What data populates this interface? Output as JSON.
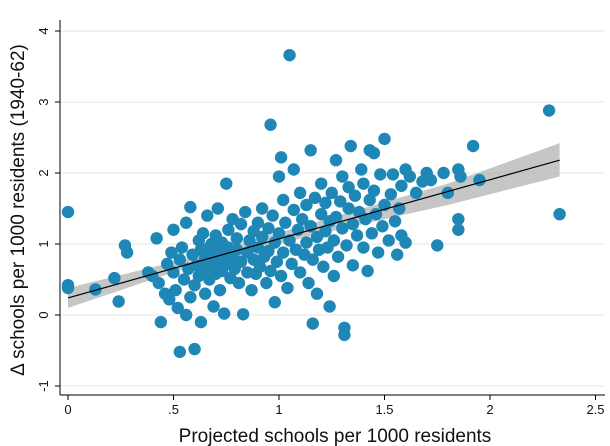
{
  "chart_data": {
    "type": "scatter",
    "title": "",
    "xlabel": "Projected schools per 1000 residents",
    "ylabel": "Δ schools per 1000 residents (1940-62)",
    "xlim": [
      -0.04,
      2.5
    ],
    "ylim": [
      -1.15,
      4.15
    ],
    "xticks": [
      0,
      0.5,
      1,
      1.5,
      2,
      2.5
    ],
    "xtick_labels": [
      "0",
      ".5",
      "1",
      "1.5",
      "2",
      "2.5"
    ],
    "yticks": [
      -1,
      0,
      1,
      2,
      3,
      4
    ],
    "ytick_labels": [
      "-1",
      "0",
      "1",
      "2",
      "3",
      "4"
    ],
    "grid": "horizontal",
    "legend": "none",
    "colors": {
      "points": "#1f87b5",
      "fit_line": "#000000",
      "ci_band": "#b3b3b3"
    },
    "fit_line": {
      "x": [
        0.0,
        2.33
      ],
      "y": [
        0.24,
        2.18
      ]
    },
    "ci_band": {
      "x": [
        0.0,
        0.6,
        1.2,
        1.8,
        2.33
      ],
      "lower": [
        0.1,
        0.7,
        1.15,
        1.55,
        1.95
      ],
      "upper": [
        0.38,
        0.82,
        1.33,
        1.85,
        2.42
      ]
    },
    "points": [
      [
        0.0,
        1.45
      ],
      [
        0.0,
        0.42
      ],
      [
        0.0,
        0.38
      ],
      [
        0.13,
        0.36
      ],
      [
        0.22,
        0.52
      ],
      [
        0.24,
        0.19
      ],
      [
        0.27,
        0.98
      ],
      [
        0.28,
        0.88
      ],
      [
        0.38,
        0.6
      ],
      [
        0.4,
        0.55
      ],
      [
        0.42,
        1.08
      ],
      [
        0.43,
        0.45
      ],
      [
        0.44,
        -0.1
      ],
      [
        0.46,
        0.3
      ],
      [
        0.47,
        0.72
      ],
      [
        0.48,
        0.22
      ],
      [
        0.49,
        0.88
      ],
      [
        0.5,
        0.6
      ],
      [
        0.5,
        1.2
      ],
      [
        0.51,
        0.35
      ],
      [
        0.52,
        0.1
      ],
      [
        0.53,
        0.78
      ],
      [
        0.53,
        -0.52
      ],
      [
        0.54,
        0.95
      ],
      [
        0.55,
        0.5
      ],
      [
        0.56,
        1.3
      ],
      [
        0.56,
        0.0
      ],
      [
        0.57,
        0.65
      ],
      [
        0.58,
        1.52
      ],
      [
        0.58,
        0.25
      ],
      [
        0.59,
        0.85
      ],
      [
        0.6,
        0.42
      ],
      [
        0.6,
        -0.48
      ],
      [
        0.61,
        0.7
      ],
      [
        0.62,
        1.05
      ],
      [
        0.62,
        0.55
      ],
      [
        0.63,
        0.92
      ],
      [
        0.63,
        -0.1
      ],
      [
        0.64,
        0.6
      ],
      [
        0.64,
        1.15
      ],
      [
        0.65,
        0.8
      ],
      [
        0.65,
        0.3
      ],
      [
        0.66,
        0.72
      ],
      [
        0.66,
        1.4
      ],
      [
        0.67,
        0.95
      ],
      [
        0.67,
        0.5
      ],
      [
        0.68,
        0.68
      ],
      [
        0.68,
        1.0
      ],
      [
        0.69,
        0.12
      ],
      [
        0.69,
        0.82
      ],
      [
        0.7,
        1.12
      ],
      [
        0.7,
        0.58
      ],
      [
        0.71,
        0.75
      ],
      [
        0.71,
        1.5
      ],
      [
        0.72,
        0.9
      ],
      [
        0.72,
        0.35
      ],
      [
        0.73,
        1.02
      ],
      [
        0.73,
        0.62
      ],
      [
        0.74,
        0.85
      ],
      [
        0.74,
        0.02
      ],
      [
        0.75,
        1.85
      ],
      [
        0.75,
        0.72
      ],
      [
        0.76,
        1.2
      ],
      [
        0.76,
        0.95
      ],
      [
        0.77,
        0.52
      ],
      [
        0.78,
        1.35
      ],
      [
        0.78,
        0.8
      ],
      [
        0.79,
        0.65
      ],
      [
        0.8,
        1.08
      ],
      [
        0.8,
        0.92
      ],
      [
        0.81,
        0.45
      ],
      [
        0.82,
        1.28
      ],
      [
        0.82,
        0.75
      ],
      [
        0.83,
        0.01
      ],
      [
        0.84,
        1.45
      ],
      [
        0.85,
        0.88
      ],
      [
        0.85,
        0.6
      ],
      [
        0.86,
        1.05
      ],
      [
        0.87,
        0.35
      ],
      [
        0.88,
        1.18
      ],
      [
        0.88,
        0.78
      ],
      [
        0.89,
        0.58
      ],
      [
        0.9,
        1.3
      ],
      [
        0.9,
        0.95
      ],
      [
        0.91,
        0.68
      ],
      [
        0.92,
        1.1
      ],
      [
        0.92,
        1.5
      ],
      [
        0.93,
        0.82
      ],
      [
        0.94,
        0.45
      ],
      [
        0.95,
        1.22
      ],
      [
        0.95,
        0.9
      ],
      [
        0.96,
        0.62
      ],
      [
        0.96,
        2.68
      ],
      [
        0.97,
        1.4
      ],
      [
        0.98,
        1.02
      ],
      [
        0.98,
        0.18
      ],
      [
        0.99,
        0.75
      ],
      [
        1.0,
        1.95
      ],
      [
        1.0,
        1.15
      ],
      [
        1.01,
        2.22
      ],
      [
        1.01,
        0.55
      ],
      [
        1.02,
        0.88
      ],
      [
        1.02,
        1.62
      ],
      [
        1.03,
        1.3
      ],
      [
        1.04,
        0.38
      ],
      [
        1.05,
        3.66
      ],
      [
        1.05,
        1.05
      ],
      [
        1.06,
        0.72
      ],
      [
        1.07,
        2.05
      ],
      [
        1.07,
        1.48
      ],
      [
        1.08,
        0.92
      ],
      [
        1.09,
        1.2
      ],
      [
        1.1,
        0.6
      ],
      [
        1.1,
        1.72
      ],
      [
        1.11,
        1.35
      ],
      [
        1.12,
        0.85
      ],
      [
        1.13,
        1.55
      ],
      [
        1.13,
        1.02
      ],
      [
        1.14,
        0.45
      ],
      [
        1.15,
        1.25
      ],
      [
        1.15,
        2.32
      ],
      [
        1.16,
        0.78
      ],
      [
        1.16,
        -0.12
      ],
      [
        1.17,
        1.65
      ],
      [
        1.18,
        1.1
      ],
      [
        1.18,
        0.3
      ],
      [
        1.19,
        0.92
      ],
      [
        1.2,
        1.42
      ],
      [
        1.2,
        1.85
      ],
      [
        1.21,
        0.68
      ],
      [
        1.22,
        1.18
      ],
      [
        1.22,
        1.58
      ],
      [
        1.23,
        0.95
      ],
      [
        1.24,
        1.32
      ],
      [
        1.24,
        0.12
      ],
      [
        1.25,
        1.72
      ],
      [
        1.26,
        1.05
      ],
      [
        1.26,
        0.55
      ],
      [
        1.27,
        2.18
      ],
      [
        1.27,
        1.38
      ],
      [
        1.28,
        0.82
      ],
      [
        1.29,
        1.6
      ],
      [
        1.3,
        1.22
      ],
      [
        1.3,
        1.95
      ],
      [
        1.31,
        -0.18
      ],
      [
        1.31,
        -0.28
      ],
      [
        1.32,
        0.98
      ],
      [
        1.33,
        1.5
      ],
      [
        1.33,
        1.8
      ],
      [
        1.34,
        2.38
      ],
      [
        1.35,
        1.28
      ],
      [
        1.35,
        0.7
      ],
      [
        1.36,
        1.68
      ],
      [
        1.37,
        1.12
      ],
      [
        1.38,
        1.45
      ],
      [
        1.39,
        2.05
      ],
      [
        1.4,
        0.95
      ],
      [
        1.4,
        1.85
      ],
      [
        1.41,
        1.35
      ],
      [
        1.42,
        0.62
      ],
      [
        1.43,
        1.62
      ],
      [
        1.43,
        2.32
      ],
      [
        1.44,
        1.15
      ],
      [
        1.45,
        1.75
      ],
      [
        1.45,
        2.28
      ],
      [
        1.46,
        1.42
      ],
      [
        1.47,
        0.88
      ],
      [
        1.48,
        1.98
      ],
      [
        1.49,
        1.25
      ],
      [
        1.5,
        1.55
      ],
      [
        1.5,
        2.48
      ],
      [
        1.52,
        1.05
      ],
      [
        1.53,
        1.7
      ],
      [
        1.54,
        1.98
      ],
      [
        1.55,
        1.32
      ],
      [
        1.56,
        0.85
      ],
      [
        1.57,
        1.5
      ],
      [
        1.58,
        1.82
      ],
      [
        1.58,
        1.12
      ],
      [
        1.6,
        2.05
      ],
      [
        1.6,
        1.02
      ],
      [
        1.62,
        1.95
      ],
      [
        1.65,
        1.72
      ],
      [
        1.68,
        1.88
      ],
      [
        1.7,
        2.0
      ],
      [
        1.72,
        1.9
      ],
      [
        1.75,
        0.98
      ],
      [
        1.78,
        2.0
      ],
      [
        1.8,
        1.72
      ],
      [
        1.85,
        2.05
      ],
      [
        1.85,
        1.35
      ],
      [
        1.85,
        1.2
      ],
      [
        1.86,
        1.95
      ],
      [
        1.92,
        2.38
      ],
      [
        1.95,
        1.9
      ],
      [
        2.28,
        2.88
      ],
      [
        2.33,
        1.42
      ]
    ]
  }
}
